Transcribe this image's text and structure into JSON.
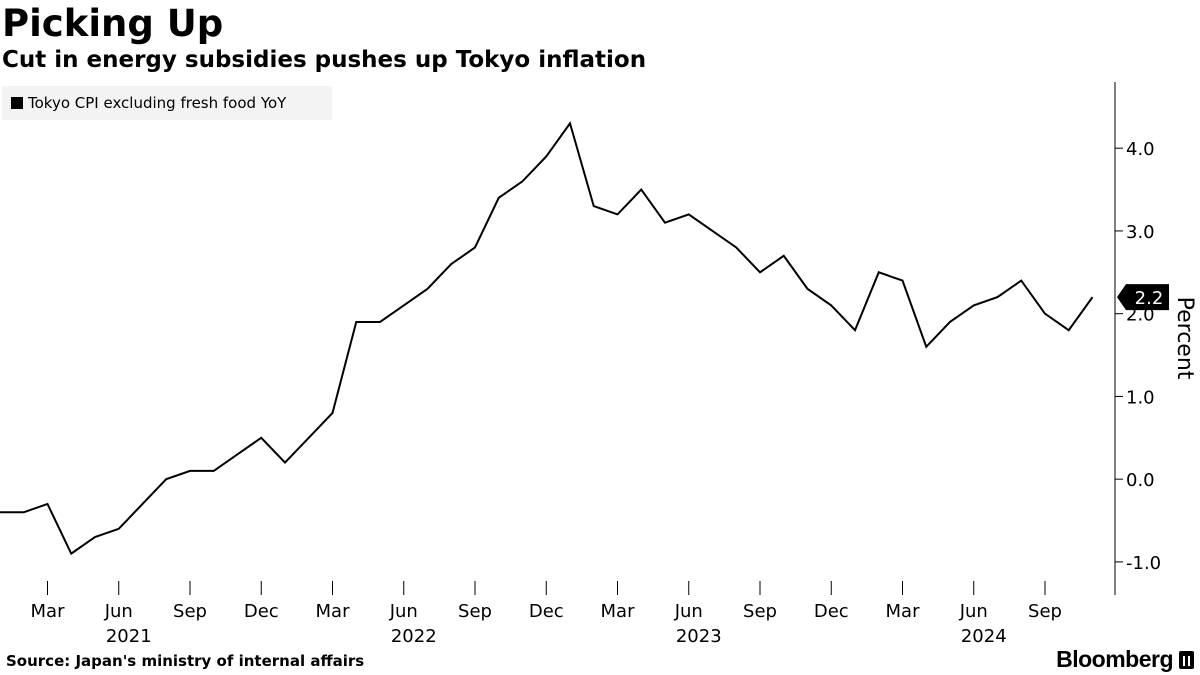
{
  "header": {
    "title": "Picking Up",
    "subtitle": "Cut in energy subsidies pushes up Tokyo inflation"
  },
  "footer": {
    "source": "Source: Japan's ministry of internal affairs",
    "brand": "Bloomberg"
  },
  "chart_data": {
    "type": "line",
    "title": "Picking Up",
    "subtitle": "Cut in energy subsidies pushes up Tokyo inflation",
    "ylabel": "Percent",
    "xlabel": "",
    "ylim": [
      -1.4,
      4.8
    ],
    "yticks": [
      {
        "value": 4.0,
        "label": "4.0"
      },
      {
        "value": 3.0,
        "label": "3.0"
      },
      {
        "value": 2.0,
        "label": "2.0"
      },
      {
        "value": 1.0,
        "label": "1.0"
      },
      {
        "value": 0.0,
        "label": "0.0"
      },
      {
        "value": -1.0,
        "label": "-1.0"
      }
    ],
    "xticks": [
      {
        "label": "Mar",
        "index": 2
      },
      {
        "label": "Jun",
        "index": 5
      },
      {
        "label": "Sep",
        "index": 8
      },
      {
        "label": "Dec",
        "index": 11
      },
      {
        "label": "Mar",
        "index": 14
      },
      {
        "label": "Jun",
        "index": 17
      },
      {
        "label": "Sep",
        "index": 20
      },
      {
        "label": "Dec",
        "index": 23
      },
      {
        "label": "Mar",
        "index": 26
      },
      {
        "label": "Jun",
        "index": 29
      },
      {
        "label": "Sep",
        "index": 32
      },
      {
        "label": "Dec",
        "index": 35
      },
      {
        "label": "Mar",
        "index": 38
      },
      {
        "label": "Jun",
        "index": 41
      },
      {
        "label": "Sep",
        "index": 44
      }
    ],
    "years": [
      {
        "label": "2021",
        "index": 5
      },
      {
        "label": "2022",
        "index": 17
      },
      {
        "label": "2023",
        "index": 29
      },
      {
        "label": "2024",
        "index": 41
      }
    ],
    "legend": "top-left",
    "grid": false,
    "series": [
      {
        "name": "Tokyo CPI excluding fresh food YoY",
        "color": "#000000",
        "start": "2021-01",
        "values": [
          -0.4,
          -0.4,
          -0.3,
          -0.9,
          -0.7,
          -0.6,
          -0.3,
          0.0,
          0.1,
          0.1,
          0.3,
          0.5,
          0.2,
          0.5,
          0.8,
          1.9,
          1.9,
          2.1,
          2.3,
          2.6,
          2.8,
          3.4,
          3.6,
          3.9,
          4.3,
          3.3,
          3.2,
          3.5,
          3.1,
          3.2,
          3.0,
          2.8,
          2.5,
          2.7,
          2.3,
          2.1,
          1.8,
          2.5,
          2.4,
          1.6,
          1.9,
          2.1,
          2.2,
          2.4,
          2.0,
          1.8,
          2.2
        ]
      }
    ],
    "last_value_label": "2.2"
  }
}
